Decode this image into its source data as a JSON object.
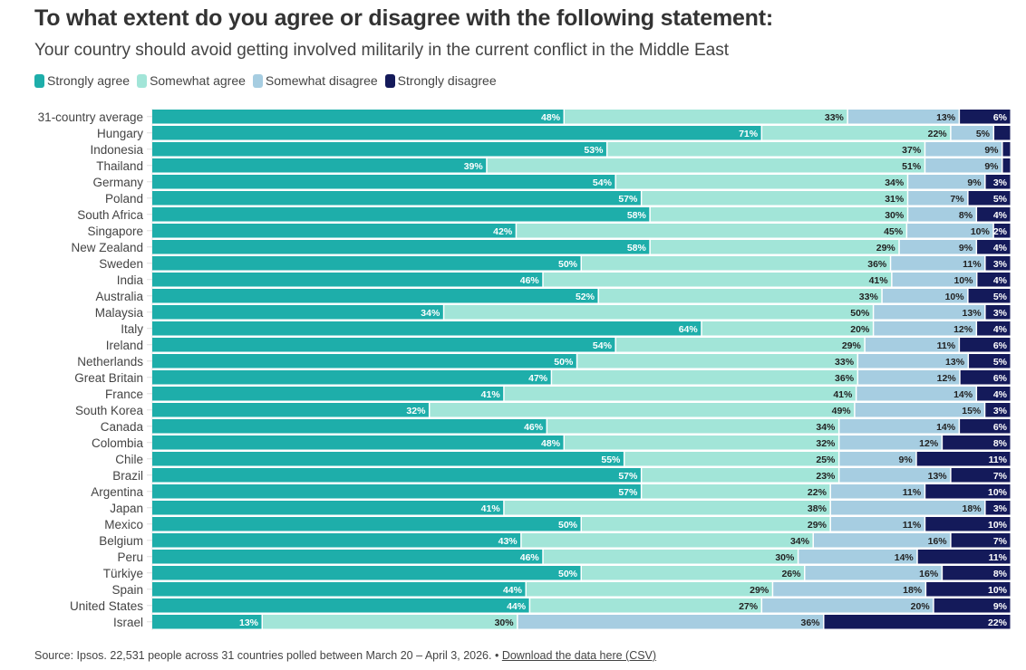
{
  "header": {
    "title": "To what extent do you agree or disagree with the following statement:",
    "subtitle": "Your country should avoid getting involved militarily in the current conflict in the Middle East"
  },
  "footer": {
    "source": "Source: Ipsos. 22,531 people across 31 countries polled between March 20 – April 3, 2026. •",
    "link": "Download the data here (CSV)"
  },
  "chart_data": {
    "type": "bar",
    "orientation": "horizontal",
    "stacked": true,
    "title": "To what extent do you agree or disagree with the following statement:",
    "subtitle": "Your country should avoid getting involved militarily in the current conflict in the Middle East",
    "xlim": [
      0,
      100
    ],
    "unit": "%",
    "legend_position": "top-left",
    "categories": [
      "31-country average",
      "Hungary",
      "Indonesia",
      "Thailand",
      "Germany",
      "Poland",
      "South Africa",
      "Singapore",
      "New Zealand",
      "Sweden",
      "India",
      "Australia",
      "Malaysia",
      "Italy",
      "Ireland",
      "Netherlands",
      "Great Britain",
      "France",
      "South Korea",
      "Canada",
      "Colombia",
      "Chile",
      "Brazil",
      "Argentina",
      "Japan",
      "Mexico",
      "Belgium",
      "Peru",
      "Türkiye",
      "Spain",
      "United States",
      "Israel"
    ],
    "series": [
      {
        "name": "Strongly agree",
        "color": "#1eaeaa",
        "label_color": "#ffffff",
        "values": [
          48,
          71,
          53,
          39,
          54,
          57,
          58,
          42,
          58,
          50,
          46,
          52,
          34,
          64,
          54,
          50,
          47,
          41,
          32,
          46,
          48,
          55,
          57,
          57,
          41,
          50,
          43,
          46,
          50,
          44,
          44,
          13
        ]
      },
      {
        "name": "Somewhat agree",
        "color": "#a2e5d8",
        "label_color": "#222222",
        "values": [
          33,
          22,
          37,
          51,
          34,
          31,
          30,
          45,
          29,
          36,
          41,
          33,
          50,
          20,
          29,
          33,
          36,
          41,
          49,
          34,
          32,
          25,
          23,
          22,
          38,
          29,
          34,
          30,
          26,
          29,
          27,
          30
        ]
      },
      {
        "name": "Somewhat disagree",
        "color": "#a6cde1",
        "label_color": "#222222",
        "values": [
          13,
          5,
          9,
          9,
          9,
          7,
          8,
          10,
          9,
          11,
          10,
          10,
          13,
          12,
          11,
          13,
          12,
          14,
          15,
          14,
          12,
          9,
          13,
          11,
          18,
          11,
          16,
          14,
          16,
          18,
          20,
          36
        ]
      },
      {
        "name": "Strongly disagree",
        "color": "#141a5a",
        "label_color": "#ffffff",
        "values": [
          6,
          2,
          1,
          1,
          3,
          5,
          4,
          2,
          4,
          3,
          4,
          5,
          3,
          4,
          6,
          5,
          6,
          4,
          3,
          6,
          8,
          11,
          7,
          10,
          3,
          10,
          7,
          11,
          8,
          10,
          9,
          22
        ],
        "hidden_labels": [
          1,
          2,
          3
        ]
      }
    ]
  }
}
